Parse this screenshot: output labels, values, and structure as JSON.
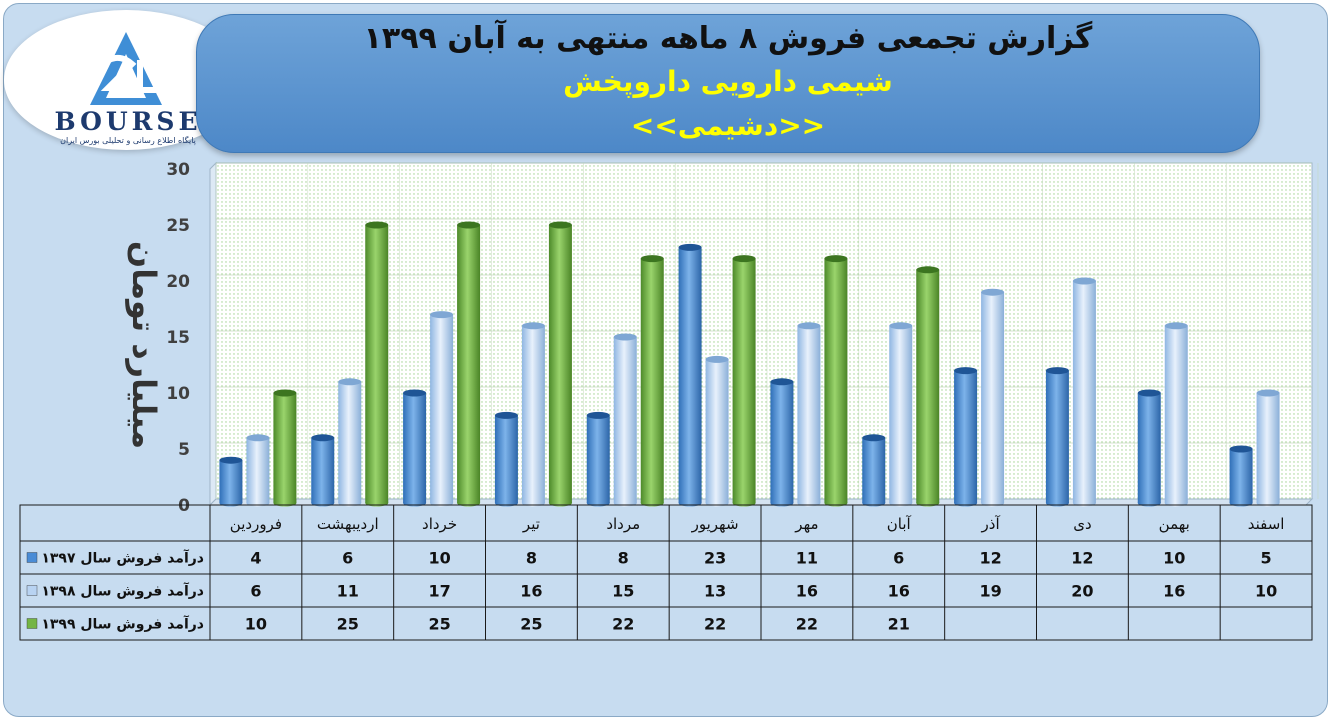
{
  "logo": {
    "wordmark": "BOURSE",
    "tagline": "پایگاه اطلاع رسانی و تحلیلی بورس ایران"
  },
  "header": {
    "title": "گزارش تجمعی فروش ۸ ماهه منتهی به آبان ۱۳۹۹",
    "subtitle": "شیمی دارویی داروپخش",
    "company": "<<دشیمی>>"
  },
  "colors": {
    "s1397": "#4a8cd6",
    "s1398": "#b8d3f2",
    "s1399": "#74b545",
    "header": "#5591ce",
    "title_accent": "#ffff00"
  },
  "chart_data": {
    "type": "bar",
    "ylabel": "میلیارد تومان",
    "ylim": [
      0,
      30
    ],
    "yticks": [
      0,
      5,
      10,
      15,
      20,
      25,
      30
    ],
    "categories": [
      "فروردین",
      "اردیبهشت",
      "خرداد",
      "تیر",
      "مرداد",
      "شهریور",
      "مهر",
      "آبان",
      "آذر",
      "دی",
      "بهمن",
      "اسفند"
    ],
    "series": [
      {
        "name": "درآمد فروش سال ۱۳۹۷",
        "values": [
          4,
          6,
          10,
          8,
          8,
          23,
          11,
          6,
          12,
          12,
          10,
          5
        ]
      },
      {
        "name": "درآمد فروش سال ۱۳۹۸",
        "values": [
          6,
          11,
          17,
          16,
          15,
          13,
          16,
          16,
          19,
          20,
          16,
          10
        ]
      },
      {
        "name": "درآمد فروش سال ۱۳۹۹",
        "values": [
          10,
          25,
          25,
          25,
          22,
          22,
          22,
          21,
          null,
          null,
          null,
          null
        ]
      }
    ],
    "grid": true,
    "legend": "data-table"
  }
}
